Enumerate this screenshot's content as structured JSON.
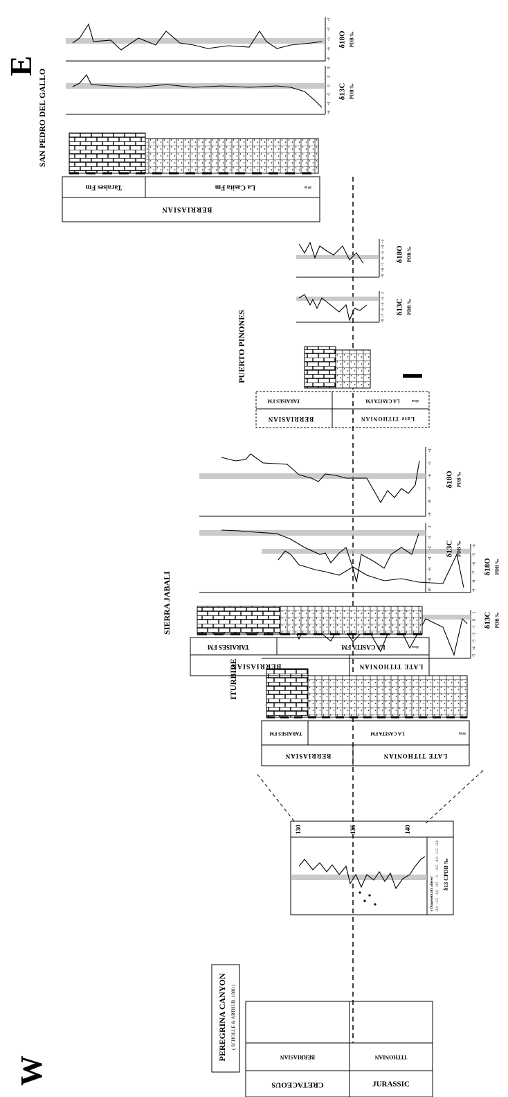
{
  "header": {
    "west": "W",
    "east": "E"
  },
  "sections": [
    {
      "title": "PEREGRINA CANYON",
      "subtitle": "( SCHOLLE & ARTHUR, 1980 )",
      "systems": [
        "CRETACEOUS",
        "JURASSIC"
      ],
      "stages": [
        "BERRIASIAN",
        "TITHONIAN"
      ],
      "age_ticks": [
        130,
        135,
        140
      ],
      "isotope_ticks": [
        "-2.0",
        "-1.5",
        "-1.0",
        "-0.5",
        "0",
        "+0.5",
        "+1.0",
        "+1.5",
        "+2.0"
      ],
      "axis_label": "δ13 CPDB ‰",
      "legend": "o Diagenetically altered"
    },
    {
      "title": "ITURBIDE",
      "formations": [
        "TARAISES FM",
        "LA CASITA FM"
      ],
      "stages": [
        "BERRIASIAN",
        "LATE TITHONIAN"
      ],
      "scale": "10 m",
      "carbon": {
        "label": "δ13C",
        "unit": "PDB ‰",
        "ticks": [
          -5,
          -4,
          -3,
          -2,
          -1,
          0,
          1
        ]
      },
      "oxygen": {
        "label": "δ18O",
        "unit": "PDB ‰",
        "ticks": [
          -9,
          -8,
          -7,
          -6,
          -5,
          -4
        ]
      }
    },
    {
      "title": "SIERRA JABALI",
      "formations": [
        "TARAISES FM",
        "LA CASITA FM"
      ],
      "stages": [
        "BERRIASIAN",
        "LATE TITHONIAN"
      ],
      "scale": "10 m",
      "carbon": {
        "label": "δ13C",
        "unit": "PDB ‰",
        "ticks": [
          -10,
          -8,
          -6,
          -4,
          -2,
          0,
          2
        ]
      },
      "oxygen": {
        "label": "δ18O",
        "unit": "PDB ‰",
        "ticks": [
          -9,
          -8,
          -7,
          -6,
          -5,
          -4
        ]
      }
    },
    {
      "title": "PUERTO PINONES",
      "formations": [
        "TARAISES FM",
        "LA CASITA FM"
      ],
      "stages": [
        "BERRIASIAN",
        "Late TITHONIAN"
      ],
      "scale": "10 m",
      "carbon": {
        "label": "δ13C",
        "unit": "PDB ‰",
        "ticks": [
          -9,
          -7,
          -5,
          -3,
          -1,
          1
        ]
      },
      "oxygen": {
        "label": "δ18O",
        "unit": "PDB ‰",
        "ticks": [
          -9,
          -8,
          -7,
          -6,
          -5,
          -4,
          -3
        ]
      }
    },
    {
      "title": "SAN PEDRO DEL GALLO",
      "formations": [
        "Taraises Fm",
        "La Casita Fm"
      ],
      "stages": [
        "BERRIASIAN"
      ],
      "scale": "10 m",
      "carbon": {
        "label": "δ13C",
        "unit": "PDB ‰",
        "ticks": [
          -6,
          -4,
          -2,
          0,
          2,
          4
        ]
      },
      "oxygen": {
        "label": "δ18O",
        "unit": "PDB ‰",
        "ticks": [
          -8,
          -6,
          -5,
          -4,
          -3
        ]
      }
    }
  ]
}
